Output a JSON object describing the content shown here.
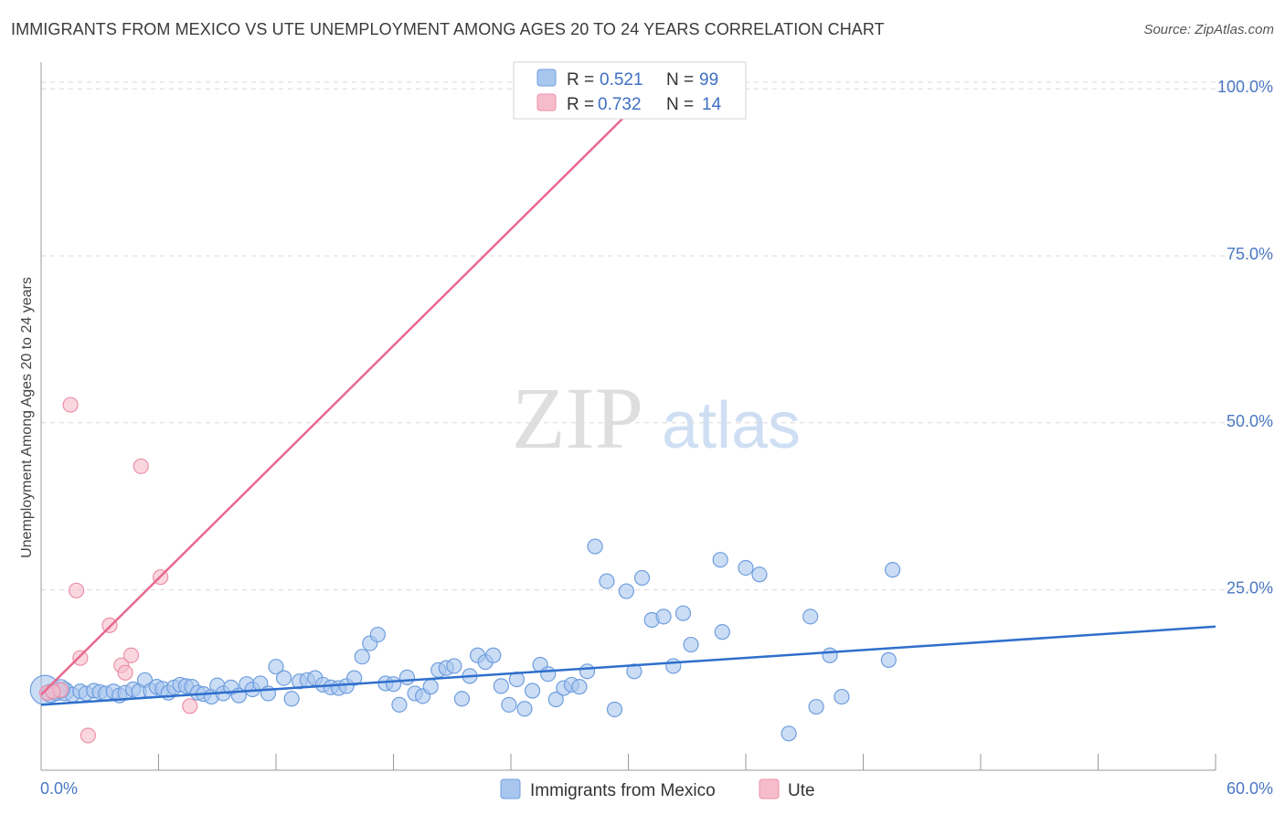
{
  "title": "IMMIGRANTS FROM MEXICO VS UTE UNEMPLOYMENT AMONG AGES 20 TO 24 YEARS CORRELATION CHART",
  "source": "Source: ZipAtlas.com",
  "watermark": {
    "zip": "ZIP",
    "atlas": "atlas"
  },
  "colors": {
    "blue_fill": "#a9c6ef",
    "blue_stroke": "#6f9ede",
    "blue_line": "#2f6fcc",
    "pink_fill": "#f6bccb",
    "pink_stroke": "#ec8fa8",
    "pink_line": "#e8688f",
    "tick_text": "#4a78c2",
    "grid": "#d9d9d9"
  },
  "legend": {
    "r_label": "R =",
    "n_label": "N =",
    "entries": [
      {
        "name": "Immigrants from Mexico",
        "r": "0.521",
        "n": "99"
      },
      {
        "name": "Ute",
        "r": "0.732",
        "n": "14"
      }
    ]
  },
  "chart_data": {
    "type": "scatter",
    "title": "IMMIGRANTS FROM MEXICO VS UTE UNEMPLOYMENT AMONG AGES 20 TO 24 YEARS CORRELATION CHART",
    "xlabel": "",
    "ylabel": "Unemployment Among Ages 20 to 24 years",
    "xlim": [
      0,
      60
    ],
    "ylim": [
      -2,
      104
    ],
    "x_tick_labels": [
      "0.0%",
      "60.0%"
    ],
    "y_ticks": [
      25,
      50,
      75,
      100
    ],
    "y_tick_labels": [
      "25.0%",
      "50.0%",
      "75.0%",
      "100.0%"
    ],
    "grid": true,
    "series": [
      {
        "name": "Immigrants from Mexico",
        "trend": {
          "x": [
            0,
            60
          ],
          "y": [
            7.8,
            19.5
          ]
        },
        "points": [
          [
            0.2,
            10.0,
            4
          ],
          [
            0.5,
            9.5,
            2
          ],
          [
            0.8,
            9.8,
            2
          ],
          [
            1.2,
            9.8,
            2
          ],
          [
            1.6,
            9.3,
            1.5
          ],
          [
            2.0,
            9.8,
            1.5
          ],
          [
            2.3,
            9.5,
            1.5
          ],
          [
            2.7,
            9.9,
            1.5
          ],
          [
            3.0,
            9.7,
            1.5
          ],
          [
            3.3,
            9.5,
            1.5
          ],
          [
            3.7,
            9.8,
            1.5
          ],
          [
            4.0,
            9.2,
            1.5
          ],
          [
            4.3,
            9.6,
            1.5
          ],
          [
            4.7,
            10.1,
            1.5
          ],
          [
            5.0,
            9.8,
            1.5
          ],
          [
            5.3,
            11.5,
            1.5
          ],
          [
            5.6,
            9.9,
            1.5
          ],
          [
            5.9,
            10.5,
            1.5
          ],
          [
            6.2,
            10.2,
            1.5
          ],
          [
            6.5,
            9.6,
            1.5
          ],
          [
            6.8,
            10.4,
            1.5
          ],
          [
            7.1,
            10.8,
            1.5
          ],
          [
            7.4,
            10.6,
            1.5
          ],
          [
            7.7,
            10.5,
            1.5
          ],
          [
            8.0,
            9.6,
            1.5
          ],
          [
            8.3,
            9.4,
            1.5
          ],
          [
            8.7,
            9.0,
            1.5
          ],
          [
            9.0,
            10.7,
            1.5
          ],
          [
            9.3,
            9.5,
            1.5
          ],
          [
            9.7,
            10.4,
            1.5
          ],
          [
            10.1,
            9.2,
            1.5
          ],
          [
            10.5,
            10.9,
            1.5
          ],
          [
            10.8,
            10.1,
            1.5
          ],
          [
            11.2,
            11.0,
            1.5
          ],
          [
            11.6,
            9.5,
            1.5
          ],
          [
            12.0,
            13.5,
            1.5
          ],
          [
            12.4,
            11.8,
            1.5
          ],
          [
            12.8,
            8.7,
            1.5
          ],
          [
            13.2,
            11.3,
            1.5
          ],
          [
            13.6,
            11.5,
            1.5
          ],
          [
            14.0,
            11.8,
            1.5
          ],
          [
            14.4,
            10.8,
            1.5
          ],
          [
            14.8,
            10.4,
            1.5
          ],
          [
            15.2,
            10.3,
            1.5
          ],
          [
            15.6,
            10.6,
            1.5
          ],
          [
            16.0,
            11.8,
            1.5
          ],
          [
            16.4,
            15.0,
            1.5
          ],
          [
            16.8,
            17.0,
            1.5
          ],
          [
            17.2,
            18.3,
            1.5
          ],
          [
            17.6,
            11.0,
            1.5
          ],
          [
            18.0,
            10.9,
            1.5
          ],
          [
            18.3,
            7.8,
            1.5
          ],
          [
            18.7,
            11.9,
            1.5
          ],
          [
            19.1,
            9.5,
            1.5
          ],
          [
            19.5,
            9.1,
            1.5
          ],
          [
            19.9,
            10.5,
            1.5
          ],
          [
            20.3,
            13.0,
            1.5
          ],
          [
            20.7,
            13.3,
            1.5
          ],
          [
            21.1,
            13.6,
            1.5
          ],
          [
            21.5,
            8.7,
            1.5
          ],
          [
            21.9,
            12.1,
            1.5
          ],
          [
            22.3,
            15.2,
            1.5
          ],
          [
            22.7,
            14.2,
            1.5
          ],
          [
            23.1,
            15.2,
            1.5
          ],
          [
            23.5,
            10.6,
            1.5
          ],
          [
            23.9,
            7.8,
            1.5
          ],
          [
            24.3,
            11.6,
            1.5
          ],
          [
            24.7,
            7.2,
            1.5
          ],
          [
            25.1,
            9.9,
            1.5
          ],
          [
            25.5,
            13.8,
            1.5
          ],
          [
            25.9,
            12.4,
            1.5
          ],
          [
            26.3,
            8.6,
            1.5
          ],
          [
            26.7,
            10.3,
            1.5
          ],
          [
            27.1,
            10.8,
            1.5
          ],
          [
            27.5,
            10.5,
            1.5
          ],
          [
            27.9,
            12.8,
            1.5
          ],
          [
            28.3,
            31.5,
            1.5
          ],
          [
            28.9,
            26.3,
            1.5
          ],
          [
            29.3,
            7.1,
            1.5
          ],
          [
            29.9,
            24.8,
            1.5
          ],
          [
            30.3,
            12.8,
            1.5
          ],
          [
            30.7,
            26.8,
            1.5
          ],
          [
            31.2,
            20.5,
            1.5
          ],
          [
            31.8,
            21.0,
            1.5
          ],
          [
            32.3,
            13.6,
            1.5
          ],
          [
            32.8,
            21.5,
            1.5
          ],
          [
            33.2,
            16.8,
            1.5
          ],
          [
            34.7,
            29.5,
            1.5
          ],
          [
            34.8,
            18.7,
            1.5
          ],
          [
            36.0,
            28.3,
            1.5
          ],
          [
            36.7,
            27.3,
            1.5
          ],
          [
            38.2,
            3.5,
            1.5
          ],
          [
            39.3,
            21.0,
            1.5
          ],
          [
            39.6,
            7.5,
            1.5
          ],
          [
            40.3,
            15.2,
            1.5
          ],
          [
            40.9,
            9.0,
            1.5
          ],
          [
            43.5,
            28.0,
            1.5
          ],
          [
            43.3,
            14.5,
            1.5
          ],
          [
            1.0,
            10.2,
            2
          ]
        ]
      },
      {
        "name": "Ute",
        "trend": {
          "x": [
            0,
            30
          ],
          "y": [
            9.3,
            96.4
          ]
        },
        "points": [
          [
            0.3,
            9.6,
            1.5
          ],
          [
            1.0,
            10.0,
            1.5
          ],
          [
            1.5,
            52.7,
            1.5
          ],
          [
            1.8,
            24.9,
            1.5
          ],
          [
            2.0,
            14.8,
            1.5
          ],
          [
            2.4,
            3.2,
            1.5
          ],
          [
            3.5,
            19.7,
            1.5
          ],
          [
            4.1,
            13.7,
            1.5
          ],
          [
            4.3,
            12.6,
            1.5
          ],
          [
            4.6,
            15.2,
            1.5
          ],
          [
            5.1,
            43.5,
            1.5
          ],
          [
            6.1,
            26.9,
            1.5
          ],
          [
            7.6,
            7.6,
            1.5
          ],
          [
            0.6,
            9.8,
            1.5
          ]
        ]
      }
    ]
  }
}
